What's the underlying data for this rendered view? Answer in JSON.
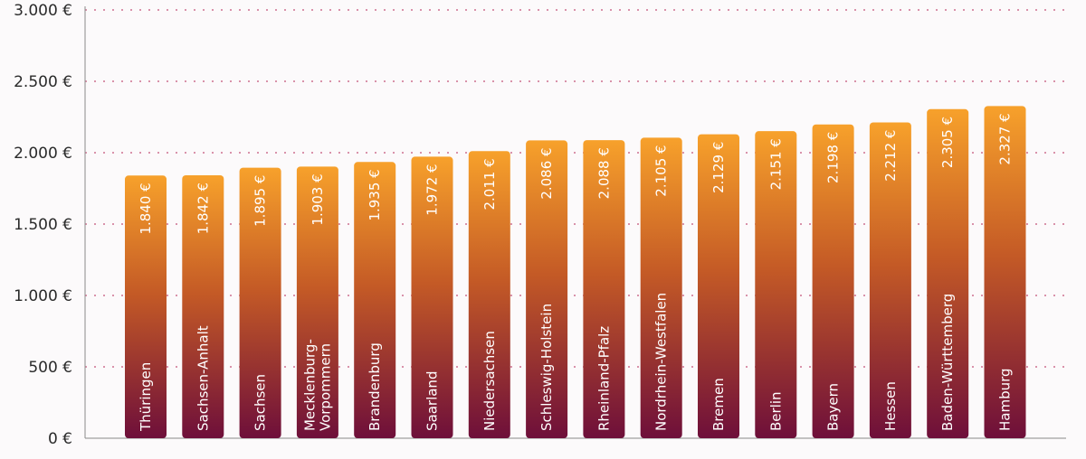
{
  "chart_data": {
    "type": "bar",
    "categories": [
      "Thüringen",
      "Sachsen-Anhalt",
      "Sachsen",
      "Mecklenburg-Vorpommern",
      "Brandenburg",
      "Saarland",
      "Niedersachsen",
      "Schleswig-Holstein",
      "Rheinland-Pfalz",
      "Nordrhein-Westfalen",
      "Bremen",
      "Berlin",
      "Bayern",
      "Hessen",
      "Baden-Württemberg",
      "Hamburg"
    ],
    "category_lines": [
      [
        "Thüringen"
      ],
      [
        "Sachsen-Anhalt"
      ],
      [
        "Sachsen"
      ],
      [
        "Mecklenburg-",
        "Vorpommern"
      ],
      [
        "Brandenburg"
      ],
      [
        "Saarland"
      ],
      [
        "Niedersachsen"
      ],
      [
        "Schleswig-Holstein"
      ],
      [
        "Rheinland-Pfalz"
      ],
      [
        "Nordrhein-Westfalen"
      ],
      [
        "Bremen"
      ],
      [
        "Berlin"
      ],
      [
        "Bayern"
      ],
      [
        "Hessen"
      ],
      [
        "Baden-Württemberg"
      ],
      [
        "Hamburg"
      ]
    ],
    "values": [
      1840,
      1842,
      1895,
      1903,
      1935,
      1972,
      2011,
      2086,
      2088,
      2105,
      2129,
      2151,
      2198,
      2212,
      2305,
      2327
    ],
    "value_labels": [
      "1.840 €",
      "1.842 €",
      "1.895 €",
      "1.903 €",
      "1.935 €",
      "1.972 €",
      "2.011 €",
      "2.086 €",
      "2.088 €",
      "2.105 €",
      "2.129 €",
      "2.151 €",
      "2.198 €",
      "2.212 €",
      "2.305 €",
      "2.327 €"
    ],
    "ylim": [
      0,
      3000
    ],
    "yticks": [
      0,
      500,
      1000,
      1500,
      2000,
      2500,
      3000
    ],
    "ytick_labels": [
      "0 €",
      "500 €",
      "1.000 €",
      "1.500 €",
      "2.000 €",
      "2.500 €",
      "3.000 €"
    ],
    "grid": true,
    "title": "",
    "xlabel": "",
    "ylabel": ""
  },
  "colors": {
    "bar_top": "#f7a12b",
    "bar_mid": "#c45a26",
    "bar_bottom": "#6e0f3a",
    "grid": "#c4547a",
    "axis": "#8a8a8a"
  }
}
